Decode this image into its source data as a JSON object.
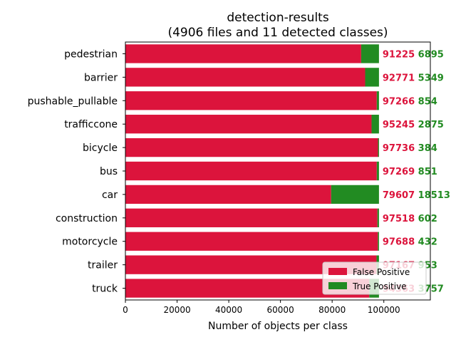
{
  "chart_data": {
    "type": "bar",
    "orientation": "horizontal",
    "stacked": true,
    "title": "detection-results",
    "subtitle": "(4906 files and 11 detected classes)",
    "xlabel": "Number of objects per class",
    "ylabel": "",
    "xlim": [
      0,
      118000
    ],
    "xticks": [
      0,
      20000,
      40000,
      60000,
      80000,
      100000
    ],
    "xtick_labels": [
      "0",
      "20000",
      "40000",
      "60000",
      "80000",
      "100000"
    ],
    "grid": false,
    "legend_position": "lower-right",
    "categories": [
      "pedestrian",
      "barrier",
      "pushable_pullable",
      "trafficcone",
      "bicycle",
      "bus",
      "car",
      "construction",
      "motorcycle",
      "trailer",
      "truck"
    ],
    "series": [
      {
        "name": "False Positive",
        "color": "#dc143c",
        "values": [
          91225,
          92771,
          97266,
          95245,
          97736,
          97269,
          79607,
          97518,
          97688,
          97167,
          94363
        ]
      },
      {
        "name": "True Positive",
        "color": "#228b22",
        "values": [
          6895,
          5349,
          854,
          2875,
          384,
          851,
          18513,
          602,
          432,
          953,
          3757
        ]
      }
    ]
  }
}
